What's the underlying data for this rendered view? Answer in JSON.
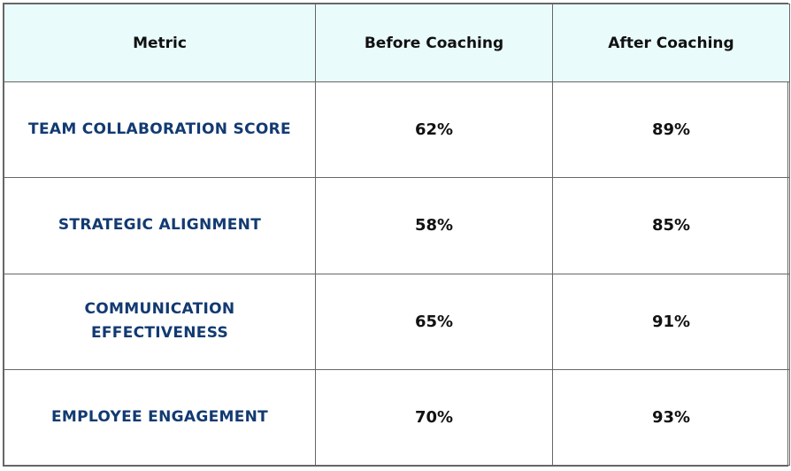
{
  "table": {
    "headers": [
      "Metric",
      "Before Coaching",
      "After Coaching"
    ],
    "rows": [
      {
        "metric": "TEAM COLLABORATION SCORE",
        "before": "62%",
        "after": "89%"
      },
      {
        "metric": "STRATEGIC ALIGNMENT",
        "before": "58%",
        "after": "85%"
      },
      {
        "metric": "COMMUNICATION EFFECTIVENESS",
        "before": "65%",
        "after": "91%"
      },
      {
        "metric": "EMPLOYEE ENGAGEMENT",
        "before": "70%",
        "after": "93%"
      }
    ]
  },
  "colors": {
    "header_background": "#e9fcfb",
    "metric_text": "#123a72",
    "value_text": "#111111",
    "border": "#666666"
  }
}
